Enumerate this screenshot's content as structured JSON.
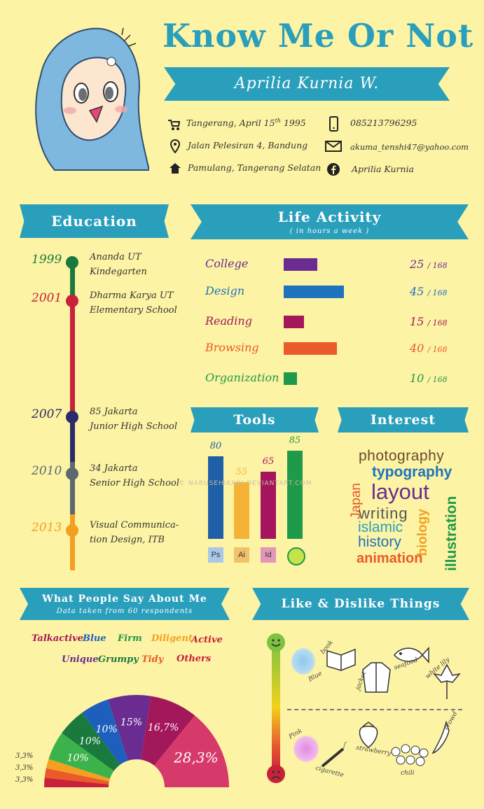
{
  "header": {
    "title": "Know Me Or Not",
    "name": "Aprilia Kurnia W."
  },
  "contacts": {
    "birth": {
      "text": "Tangerang, April 15",
      "sup": "th",
      "year": "1995",
      "icon": "stroller-icon"
    },
    "address": {
      "text": "Jalan Pelesiran 4, Bandung",
      "icon": "location-pin-icon"
    },
    "home": {
      "text": "Pamulang, Tangerang Selatan",
      "icon": "home-icon"
    },
    "phone": {
      "text": "085213796295",
      "icon": "phone-icon"
    },
    "email": {
      "text": "akuma_tenshi47@yahoo.com",
      "icon": "mail-icon"
    },
    "facebook": {
      "text": "Aprilia Kurnia",
      "icon": "facebook-icon"
    }
  },
  "education": {
    "title": "Education",
    "items": [
      {
        "year": "1999",
        "line1": "Ananda UT",
        "line2": "Kindegarten",
        "color": "#1a7a3e"
      },
      {
        "year": "2001",
        "line1": "Dharma Karya UT",
        "line2": "Elementary School",
        "color": "#c8213a"
      },
      {
        "year": "2007",
        "line1": "85 Jakarta",
        "line2": "Junior High School",
        "color": "#2b2b6a"
      },
      {
        "year": "2010",
        "line1": "34 Jakarta",
        "line2": "Senior High School",
        "color": "#5d6870"
      },
      {
        "year": "2013",
        "line1": "Visual Communica-",
        "line2": "tion Design, ITB",
        "color": "#f3a022"
      }
    ]
  },
  "life_activity": {
    "title": "Life Activity",
    "subtitle": "( in hours a week )",
    "total": "168",
    "items": [
      {
        "label": "College",
        "value": 25,
        "color": "#6a2c91"
      },
      {
        "label": "Design",
        "value": 45,
        "color": "#1e73be"
      },
      {
        "label": "Reading",
        "value": 15,
        "color": "#a3175b"
      },
      {
        "label": "Browsing",
        "value": 40,
        "color": "#ea5a2a"
      },
      {
        "label": "Organization",
        "value": 10,
        "color": "#1e9a4a"
      }
    ]
  },
  "tools": {
    "title": "Tools",
    "items": [
      {
        "value": 80,
        "icon": "Ps",
        "color": "#1f5fa8",
        "icon_bg": "#a9c8e8",
        "icon_name": "photoshop-icon"
      },
      {
        "value": 55,
        "icon": "Ai",
        "color": "#f5b335",
        "icon_bg": "#f2c26b",
        "icon_name": "illustrator-icon"
      },
      {
        "value": 65,
        "icon": "Id",
        "color": "#a5155f",
        "icon_bg": "#e396bb",
        "icon_name": "indesign-icon"
      },
      {
        "value": 85,
        "icon": "",
        "color": "#1e9a4a",
        "icon_bg": "#c8e24a",
        "icon_name": "lime-icon"
      }
    ]
  },
  "interest": {
    "title": "Interest",
    "words": [
      {
        "text": "photography",
        "color": "#6b4a2e"
      },
      {
        "text": "typography",
        "color": "#1e73be"
      },
      {
        "text": "Japan",
        "color": "#e4572e"
      },
      {
        "text": "layout",
        "color": "#6a2c91"
      },
      {
        "text": "writing",
        "color": "#555555"
      },
      {
        "text": "biology",
        "color": "#f0a020"
      },
      {
        "text": "illustration",
        "color": "#1e9a4a"
      },
      {
        "text": "islamic",
        "color": "#2a9fbc"
      },
      {
        "text": "history",
        "color": "#1e73be"
      },
      {
        "text": "animation",
        "color": "#ea5a2a"
      }
    ]
  },
  "people_say": {
    "title": "What People Say About Me",
    "subtitle": "Data taken from 60 respondents",
    "traits": [
      {
        "label": "Talkactive",
        "color": "#a3175b"
      },
      {
        "label": "Blue",
        "color": "#1e5fbe"
      },
      {
        "label": "Firm",
        "color": "#1e9a4a"
      },
      {
        "label": "Diligent",
        "color": "#f3a022"
      },
      {
        "label": "Active",
        "color": "#c8213a"
      },
      {
        "label": "Unique",
        "color": "#6a2c91"
      },
      {
        "label": "Grumpy",
        "color": "#1a7a3e"
      },
      {
        "label": "Tidy",
        "color": "#ea5a2a"
      },
      {
        "label": "Others",
        "color": "#c8213a"
      }
    ]
  },
  "chart_data": {
    "type": "pie",
    "title": "What People Say About Me",
    "subtitle": "Data taken from 60 respondents",
    "slices": [
      {
        "label": "Talkactive",
        "value": 28.3,
        "text": "28,3%",
        "color": "#d63a6a"
      },
      {
        "label": "Blue",
        "value": 16.7,
        "text": "16,7%",
        "color": "#a3175b"
      },
      {
        "label": "Firm",
        "value": 15,
        "text": "15%",
        "color": "#6a2c91"
      },
      {
        "label": "Diligent",
        "value": 10,
        "text": "10%",
        "color": "#1e5fbe"
      },
      {
        "label": "Active",
        "value": 10,
        "text": "10%",
        "color": "#1a7a3e"
      },
      {
        "label": "Unique",
        "value": 10,
        "text": "10%",
        "color": "#3cb34a"
      },
      {
        "label": "Grumpy",
        "value": 3.3,
        "text": "3,3%",
        "color": "#f3a022"
      },
      {
        "label": "Tidy",
        "value": 3.3,
        "text": "3,3%",
        "color": "#ea5a2a"
      },
      {
        "label": "Others",
        "value": 3.3,
        "text": "3,3%",
        "color": "#c8213a"
      }
    ]
  },
  "like_dislike": {
    "title": "Like & Dislike Things",
    "likes": [
      "Blue",
      "book",
      "jacket",
      "seafood",
      "white lily"
    ],
    "dislikes": [
      "Pink",
      "cigarette",
      "strawberry",
      "crowd",
      "chili"
    ]
  },
  "watermark": "© NARUSEHIKARI.DEVIANTART.COM"
}
